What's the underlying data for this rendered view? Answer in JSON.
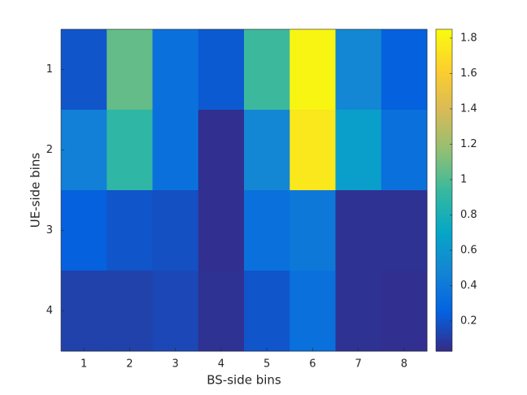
{
  "chart_data": {
    "type": "heatmap",
    "x_label": "BS-side bins",
    "y_label": "UE-side bins",
    "x_categories": [
      "1",
      "2",
      "3",
      "4",
      "5",
      "6",
      "7",
      "8"
    ],
    "y_categories": [
      "1",
      "2",
      "3",
      "4"
    ],
    "values": [
      [
        0.2,
        1.05,
        0.35,
        0.22,
        0.95,
        1.82,
        0.5,
        0.25
      ],
      [
        0.45,
        0.9,
        0.35,
        0.05,
        0.5,
        1.75,
        0.65,
        0.35
      ],
      [
        0.25,
        0.2,
        0.18,
        0.05,
        0.35,
        0.4,
        0.06,
        0.06
      ],
      [
        0.12,
        0.12,
        0.15,
        0.06,
        0.2,
        0.35,
        0.06,
        0.05
      ]
    ],
    "clim": [
      0.03,
      1.85
    ],
    "cticks": [
      0.2,
      0.4,
      0.6,
      0.8,
      1,
      1.2,
      1.4,
      1.6,
      1.8
    ],
    "colormap": [
      "#352a87",
      "#0363e1",
      "#1485d4",
      "#06a7c6",
      "#38b99e",
      "#92bf73",
      "#d9ba56",
      "#fcce2e",
      "#f9fb0e"
    ]
  }
}
